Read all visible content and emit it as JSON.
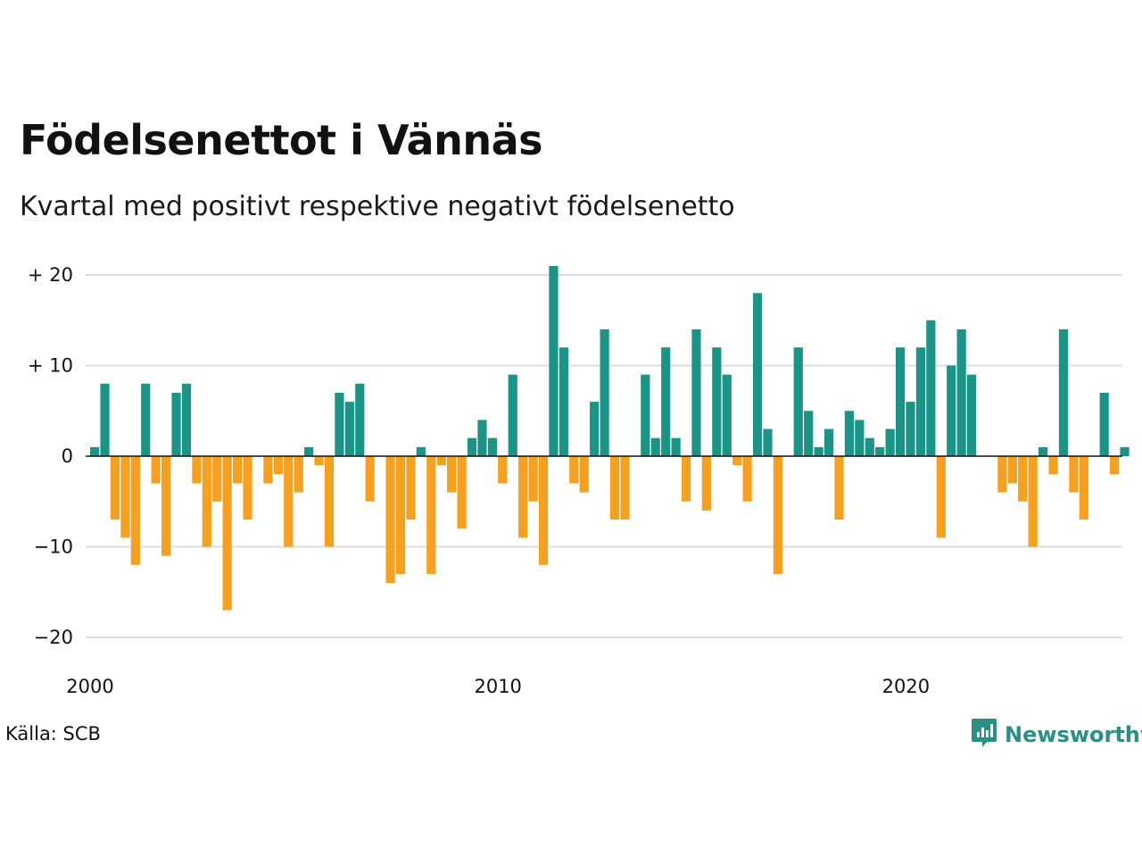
{
  "title": "Födelsenettot i Vännäs",
  "subtitle": "Kvartal med positivt respektive negativt födelsenetto",
  "source": "Källa: SCB",
  "brand": {
    "name": "Newsworthy",
    "color": "#2a8f84",
    "icon": "newsworthy-logo-icon"
  },
  "colors": {
    "positive": "#1a9486",
    "negative": "#f5a01f",
    "grid": "#dddddd",
    "zero": "#111111"
  },
  "chart_data": {
    "type": "bar",
    "title": "Födelsenettot i Vännäs",
    "subtitle": "Kvartal med positivt respektive negativt födelsenetto",
    "xlabel": "",
    "ylabel": "",
    "ylim": [
      -20,
      21
    ],
    "yticks": [
      20,
      10,
      0,
      -10,
      -20
    ],
    "ytick_labels": [
      "+ 20",
      "+ 10",
      "0",
      "−10",
      "−20"
    ],
    "xticks": [
      2000,
      2010,
      2020
    ],
    "xtick_labels": [
      "2000",
      "2010",
      "2020"
    ],
    "x_start_year": 2000,
    "periods_per_year": 4,
    "grid": true,
    "values": [
      1,
      8,
      -7,
      -9,
      -12,
      8,
      -3,
      -11,
      7,
      8,
      -3,
      -10,
      -5,
      -17,
      -3,
      -7,
      0,
      -3,
      -2,
      -10,
      -4,
      1,
      -1,
      -10,
      7,
      6,
      8,
      -5,
      0,
      -14,
      -13,
      -7,
      1,
      -13,
      -1,
      -4,
      -8,
      2,
      4,
      2,
      -3,
      9,
      -9,
      -5,
      -12,
      21,
      12,
      -3,
      -4,
      6,
      14,
      -7,
      -7,
      0,
      9,
      2,
      12,
      2,
      -5,
      14,
      -6,
      12,
      9,
      -1,
      -5,
      18,
      3,
      -13,
      0,
      12,
      5,
      1,
      3,
      -7,
      5,
      4,
      2,
      1,
      3,
      12,
      6,
      12,
      15,
      -9,
      10,
      14,
      9,
      0,
      0,
      -4,
      -3,
      -5,
      -10,
      1,
      -2,
      14,
      -4,
      -7,
      0,
      7,
      -2,
      1
    ]
  }
}
